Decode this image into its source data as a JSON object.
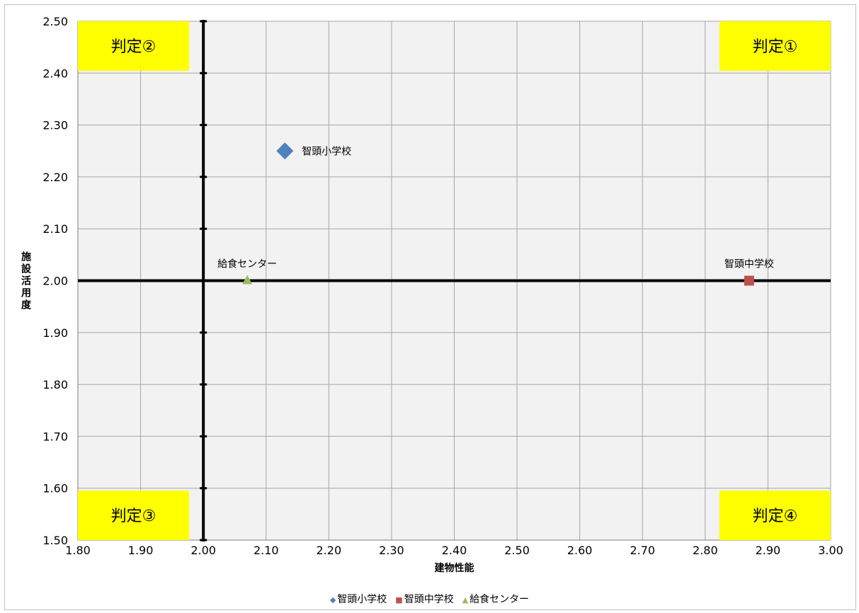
{
  "chart_data": {
    "type": "scatter",
    "title": "",
    "xlabel": "建物性能",
    "ylabel": "施設活用度",
    "xlim": [
      1.8,
      3.0
    ],
    "ylim": [
      1.5,
      2.5
    ],
    "x_ticks": [
      "1.80",
      "1.90",
      "2.00",
      "2.10",
      "2.20",
      "2.30",
      "2.40",
      "2.50",
      "2.60",
      "2.70",
      "2.80",
      "2.90",
      "3.00"
    ],
    "y_ticks": [
      "1.50",
      "1.60",
      "1.70",
      "1.80",
      "1.90",
      "2.00",
      "2.10",
      "2.20",
      "2.30",
      "2.40",
      "2.50"
    ],
    "grid": true,
    "legend_position": "bottom",
    "reference_lines": {
      "x": 2.0,
      "y": 2.0
    },
    "series": [
      {
        "name": "智頭小学校",
        "marker": "diamond",
        "color": "#4f81bd",
        "points": [
          {
            "x": 2.13,
            "y": 2.25,
            "label": "智頭小学校"
          }
        ]
      },
      {
        "name": "智頭中学校",
        "marker": "square",
        "color": "#c0504d",
        "points": [
          {
            "x": 2.87,
            "y": 2.0,
            "label": "智頭中学校"
          }
        ]
      },
      {
        "name": "給食センター",
        "marker": "triangle",
        "color": "#9bbb59",
        "points": [
          {
            "x": 2.07,
            "y": 2.0,
            "label": "給食センター"
          }
        ]
      }
    ],
    "quadrant_labels": [
      {
        "text": "判定①",
        "corner": "top-right"
      },
      {
        "text": "判定②",
        "corner": "top-left"
      },
      {
        "text": "判定③",
        "corner": "bottom-left"
      },
      {
        "text": "判定④",
        "corner": "bottom-right"
      }
    ],
    "colors": {
      "plot_bg": "#f2f2f2",
      "grid": "#a6a6a6",
      "reference": "#000000",
      "zone_bg": "#ffff00"
    }
  }
}
